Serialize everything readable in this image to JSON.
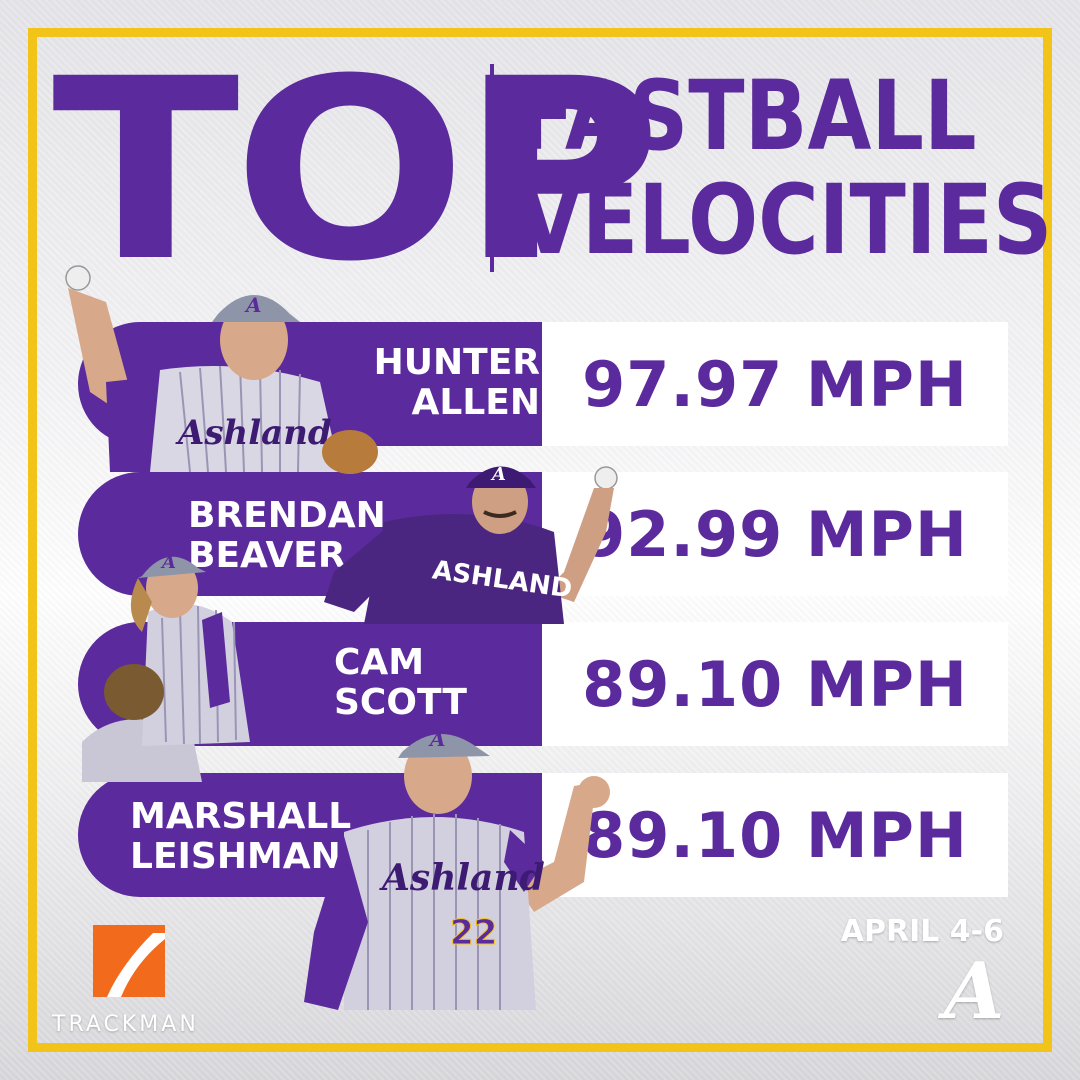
{
  "title": {
    "main_word": "TOP",
    "line_1": "FASTBALL",
    "line_2": "VELOCITIES"
  },
  "rows": [
    {
      "first_name": "HUNTER",
      "last_name": "ALLEN",
      "velocity": "97.97 MPH"
    },
    {
      "first_name": "BRENDAN",
      "last_name": "BEAVER",
      "velocity": "92.99 MPH"
    },
    {
      "first_name": "CAM",
      "last_name": "SCOTT",
      "velocity": "89.10 MPH"
    },
    {
      "first_name": "MARSHALL",
      "last_name": "LEISHMAN",
      "velocity": "89.10 MPH"
    }
  ],
  "players": {
    "row1_jersey": "Ashland",
    "row2_jersey": "ASHLAND",
    "row4_jersey": "Ashland",
    "row4_number": "22"
  },
  "footer": {
    "date": "APRIL 4-6",
    "team_logo_letter": "A",
    "sponsor": "TRACKMAN"
  },
  "colors": {
    "purple": "#5b2a9c",
    "gold": "#f2c318",
    "sponsor_orange": "#f26b1d"
  }
}
